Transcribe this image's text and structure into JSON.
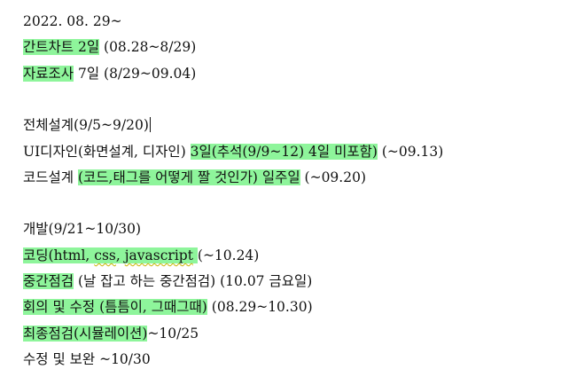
{
  "lines": [
    {
      "segments": [
        {
          "text": "2022. 08. 29~",
          "hl": false
        }
      ]
    },
    {
      "segments": [
        {
          "text": "간트차트 2일",
          "hl": true
        },
        {
          "text": " (08.28~8/29)",
          "hl": false
        }
      ]
    },
    {
      "segments": [
        {
          "text": "자료조사",
          "hl": true
        },
        {
          "text": " 7일 (8/29~09.04)",
          "hl": false
        }
      ]
    },
    {
      "segments": []
    },
    {
      "segments": [
        {
          "text": "전체설계(9/5~9/20)",
          "hl": false
        }
      ],
      "caret": true
    },
    {
      "segments": [
        {
          "text": "UI디자인(화면설계, 디자인) ",
          "hl": false
        },
        {
          "text": "3일(추석(9/9~12) 4일 미포함)",
          "hl": true
        },
        {
          "text": " (~09.13)",
          "hl": false
        }
      ]
    },
    {
      "segments": [
        {
          "text": "코드설계 ",
          "hl": false
        },
        {
          "text": "(코드,태그를 어떻게 짤 것인가) 일주일",
          "hl": true
        },
        {
          "text": " (~09.20)",
          "hl": false
        }
      ]
    },
    {
      "segments": []
    },
    {
      "segments": [
        {
          "text": "개발(9/21~10/30)",
          "hl": false
        }
      ]
    },
    {
      "segments": [
        {
          "text": "코딩(html, ",
          "hl": true
        },
        {
          "text": "css",
          "hl": true,
          "squig": true
        },
        {
          "text": ", ",
          "hl": true
        },
        {
          "text": "javascript",
          "hl": true,
          "squig": true
        },
        {
          "text": " ",
          "hl": true
        },
        {
          "text": "(~10.24)",
          "hl": false
        }
      ]
    },
    {
      "segments": [
        {
          "text": "중간점검",
          "hl": true
        },
        {
          "text": " (날 잡고 하는 중간점검) (10.07 금요일)",
          "hl": false
        }
      ]
    },
    {
      "segments": [
        {
          "text": "회의 및 수정 (틈틈이, 그때그때)",
          "hl": true
        },
        {
          "text": " (08.29~10.30)",
          "hl": false
        }
      ]
    },
    {
      "segments": [
        {
          "text": "최종점검(시뮬레이션)",
          "hl": true
        },
        {
          "text": "~10/25",
          "hl": false
        }
      ]
    },
    {
      "segments": [
        {
          "text": "수정 및 보완 ~10/30",
          "hl": false
        }
      ]
    }
  ],
  "colors": {
    "highlight": "#8ef59b",
    "text": "#111111",
    "spellcheck": "#c9b200"
  }
}
